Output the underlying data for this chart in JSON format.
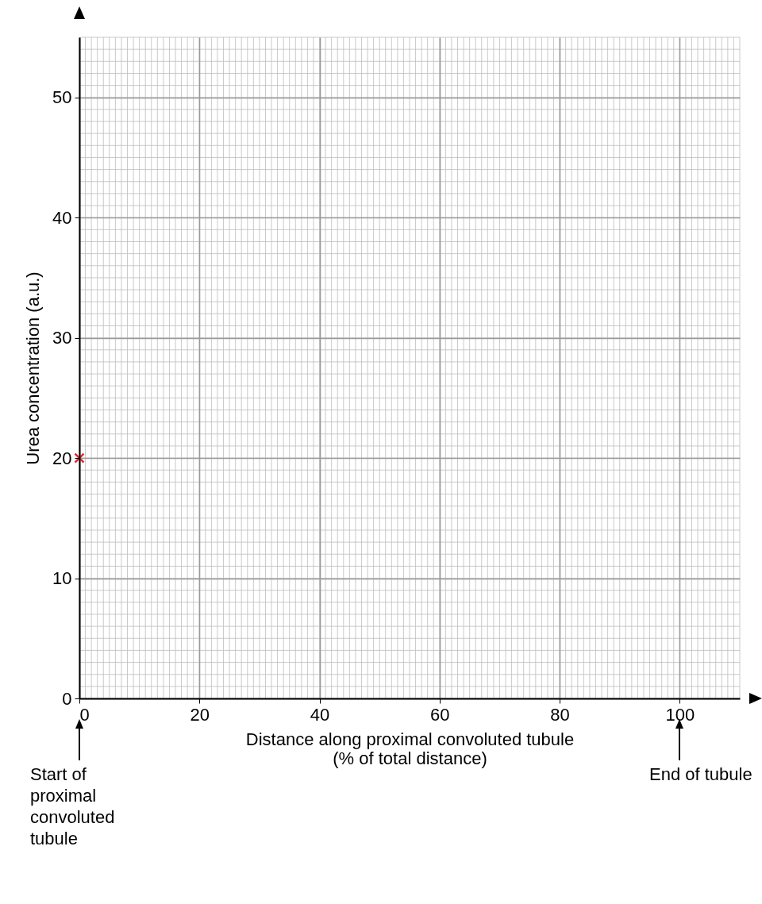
{
  "chart_data": {
    "type": "scatter",
    "xlabel": "Distance along proximal convoluted tubule (% of total distance)",
    "ylabel": "Urea concentration (a.u.)",
    "x": [
      0
    ],
    "values": [
      20
    ],
    "color": "#e8262a",
    "marker": "cross",
    "xlim": [
      0,
      110
    ],
    "ylim": [
      0,
      55
    ],
    "xticks": [
      0,
      20,
      40,
      60,
      80,
      100
    ],
    "yticks": [
      0,
      10,
      20,
      30,
      40,
      50
    ],
    "grid": true,
    "annotations": [
      "Start of proximal convoluted tubule",
      "End of tubule"
    ]
  }
}
